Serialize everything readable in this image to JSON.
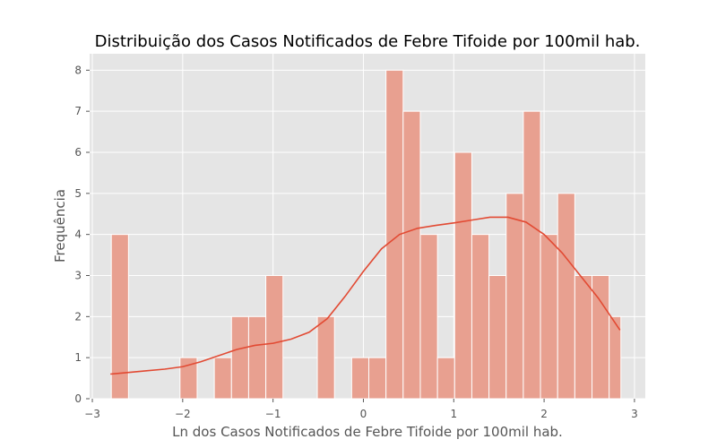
{
  "chart_data": {
    "type": "histogram",
    "title": "Distribuição dos Casos Notificados de Febre Tifoide por 100mil hab.",
    "xlabel": "Ln dos Casos Notificados de Febre Tifoide por 100mil hab.",
    "ylabel": "Frequência",
    "xlim": [
      -3.03,
      3.12
    ],
    "ylim": [
      0,
      8.4
    ],
    "xticks": [
      -3,
      -2,
      -1,
      0,
      1,
      2,
      3
    ],
    "xtick_labels": [
      "−3",
      "−2",
      "−1",
      "0",
      "1",
      "2",
      "3"
    ],
    "yticks": [
      0,
      1,
      2,
      3,
      4,
      5,
      6,
      7,
      8
    ],
    "grid": true,
    "bins": [
      {
        "x0": -2.79,
        "x1": -2.6,
        "count": 4
      },
      {
        "x0": -2.6,
        "x1": -2.41,
        "count": 0
      },
      {
        "x0": -2.41,
        "x1": -2.22,
        "count": 0
      },
      {
        "x0": -2.22,
        "x1": -2.03,
        "count": 0
      },
      {
        "x0": -2.03,
        "x1": -1.84,
        "count": 1
      },
      {
        "x0": -1.84,
        "x1": -1.65,
        "count": 0
      },
      {
        "x0": -1.65,
        "x1": -1.46,
        "count": 1
      },
      {
        "x0": -1.46,
        "x1": -1.27,
        "count": 2
      },
      {
        "x0": -1.27,
        "x1": -1.08,
        "count": 2
      },
      {
        "x0": -1.08,
        "x1": -0.89,
        "count": 3
      },
      {
        "x0": -0.89,
        "x1": -0.7,
        "count": 0
      },
      {
        "x0": -0.7,
        "x1": -0.51,
        "count": 0
      },
      {
        "x0": -0.51,
        "x1": -0.32,
        "count": 2
      },
      {
        "x0": -0.32,
        "x1": -0.13,
        "count": 0
      },
      {
        "x0": -0.13,
        "x1": 0.06,
        "count": 1
      },
      {
        "x0": 0.06,
        "x1": 0.25,
        "count": 1
      },
      {
        "x0": 0.25,
        "x1": 0.44,
        "count": 8
      },
      {
        "x0": 0.44,
        "x1": 0.63,
        "count": 7
      },
      {
        "x0": 0.63,
        "x1": 0.82,
        "count": 4
      },
      {
        "x0": 0.82,
        "x1": 1.01,
        "count": 1
      },
      {
        "x0": 1.01,
        "x1": 1.2,
        "count": 6
      },
      {
        "x0": 1.2,
        "x1": 1.39,
        "count": 4
      },
      {
        "x0": 1.39,
        "x1": 1.58,
        "count": 3
      },
      {
        "x0": 1.58,
        "x1": 1.77,
        "count": 5
      },
      {
        "x0": 1.77,
        "x1": 1.96,
        "count": 7
      },
      {
        "x0": 1.96,
        "x1": 2.15,
        "count": 4
      },
      {
        "x0": 2.15,
        "x1": 2.34,
        "count": 5
      },
      {
        "x0": 2.34,
        "x1": 2.53,
        "count": 3
      },
      {
        "x0": 2.53,
        "x1": 2.72,
        "count": 3
      },
      {
        "x0": 2.72,
        "x1": 2.85,
        "count": 2
      }
    ],
    "kde": {
      "x": [
        -2.8,
        -2.6,
        -2.4,
        -2.2,
        -2.0,
        -1.8,
        -1.6,
        -1.4,
        -1.2,
        -1.0,
        -0.8,
        -0.6,
        -0.4,
        -0.2,
        0.0,
        0.2,
        0.4,
        0.6,
        0.8,
        1.0,
        1.2,
        1.4,
        1.6,
        1.8,
        2.0,
        2.2,
        2.4,
        2.6,
        2.84
      ],
      "y": [
        0.6,
        0.64,
        0.68,
        0.72,
        0.78,
        0.9,
        1.05,
        1.2,
        1.3,
        1.35,
        1.45,
        1.62,
        1.95,
        2.5,
        3.1,
        3.65,
        4.0,
        4.15,
        4.22,
        4.28,
        4.35,
        4.42,
        4.42,
        4.3,
        4.0,
        3.55,
        3.0,
        2.45,
        1.67
      ]
    },
    "colors": {
      "bar_fill": "#e8a090",
      "bar_stroke": "#ffffff",
      "kde_line": "#e24a33",
      "plot_background": "#e5e5e5",
      "grid": "#ffffff",
      "text": "#555555"
    }
  }
}
